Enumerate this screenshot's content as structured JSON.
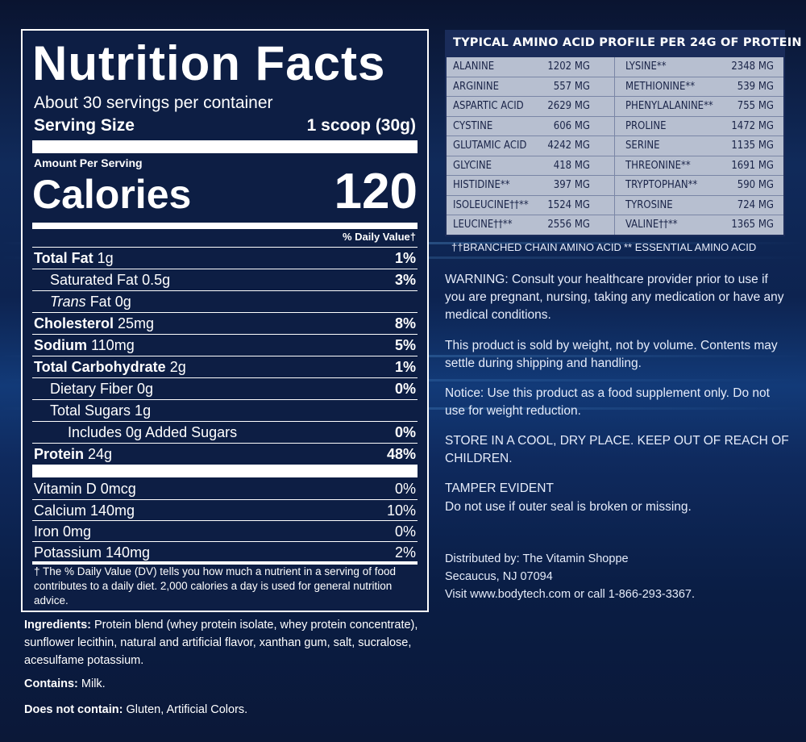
{
  "nutrition": {
    "title": "Nutrition Facts",
    "servings": "About 30 servings per container",
    "serving_size_label": "Serving Size",
    "serving_size_value": "1 scoop (30g)",
    "amount_per_serving": "Amount Per Serving",
    "calories_label": "Calories",
    "calories_value": "120",
    "dv_header": "% Daily Value†",
    "nutrients": [
      {
        "name": "Total Fat",
        "amount": " 1g",
        "dv": "1%"
      },
      {
        "name": "Saturated Fat 0.5g",
        "dv": "3%"
      },
      {
        "name_italic": "Trans",
        "name": " Fat 0g",
        "dv": ""
      },
      {
        "name": "Cholesterol",
        "amount": " 25mg",
        "dv": "8%"
      },
      {
        "name": "Sodium",
        "amount": " 110mg",
        "dv": "5%"
      },
      {
        "name": "Total Carbohydrate",
        "amount": " 2g",
        "dv": "1%"
      },
      {
        "name": "Dietary Fiber 0g",
        "dv": "0%"
      },
      {
        "name": "Total Sugars 1g",
        "dv": ""
      },
      {
        "name": "Includes 0g Added Sugars",
        "dv": "0%"
      },
      {
        "name": "Protein",
        "amount": " 24g",
        "dv": "48%"
      }
    ],
    "vitamins": [
      {
        "name": "Vitamin D 0mcg",
        "dv": "0%"
      },
      {
        "name": "Calcium 140mg",
        "dv": "10%"
      },
      {
        "name": "Iron 0mg",
        "dv": "0%"
      },
      {
        "name": "Potassium 140mg",
        "dv": "2%"
      }
    ],
    "footnote": "† The % Daily Value (DV) tells you how much a nutrient in a serving of food contributes to a daily diet. 2,000 calories a day is used for general nutrition advice."
  },
  "ingredients": {
    "label": "Ingredients:",
    "text": " Protein blend (whey protein isolate, whey protein concentrate), sunflower lecithin, natural and artificial flavor, xanthan gum, salt, sucralose, acesulfame potassium.",
    "contains_label": "Contains:",
    "contains_text": " Milk.",
    "not_contain_label": "Does not contain:",
    "not_contain_text": " Gluten, Artificial Colors."
  },
  "amino": {
    "title": "TYPICAL AMINO ACID PROFILE PER 24G OF PROTEIN",
    "rows": [
      [
        "ALANINE",
        "1202 MG",
        "LYSINE**",
        "2348 MG"
      ],
      [
        "ARGININE",
        "557 MG",
        "METHIONINE**",
        "539 MG"
      ],
      [
        "ASPARTIC ACID",
        "2629 MG",
        "PHENYLALANINE**",
        "755 MG"
      ],
      [
        "CYSTINE",
        "606 MG",
        "PROLINE",
        "1472 MG"
      ],
      [
        "GLUTAMIC ACID",
        "4242 MG",
        "SERINE",
        "1135 MG"
      ],
      [
        "GLYCINE",
        "418 MG",
        "THREONINE**",
        "1691 MG"
      ],
      [
        "HISTIDINE**",
        "397 MG",
        "TRYPTOPHAN**",
        "590 MG"
      ],
      [
        "ISOLEUCINE††**",
        "1524 MG",
        "TYROSINE",
        "724 MG"
      ],
      [
        "LEUCINE††**",
        "2556 MG",
        "VALINE††**",
        "1365 MG"
      ]
    ],
    "legend_bcaa": "††BRANCHED CHAIN AMINO ACID",
    "legend_eaa": "** ESSENTIAL AMINO ACID"
  },
  "notices": {
    "warning": "WARNING: Consult your healthcare provider prior to use if you are pregnant, nursing, taking any medication or have any medical conditions.",
    "weight": "This product is sold by weight, not by volume. Contents may settle during shipping and handling.",
    "notice": "Notice: Use this product as a food supplement only. Do not use for weight reduction.",
    "store": "STORE IN A COOL, DRY PLACE. KEEP OUT OF REACH OF CHILDREN.",
    "tamper_title": "TAMPER EVIDENT",
    "tamper_text": "Do not use if outer seal is broken or missing.",
    "dist_line1": "Distributed by: The Vitamin Shoppe",
    "dist_line2": "Secaucus, NJ 07094",
    "dist_line3": "Visit www.bodytech.com or call 1-866-293-3367."
  }
}
